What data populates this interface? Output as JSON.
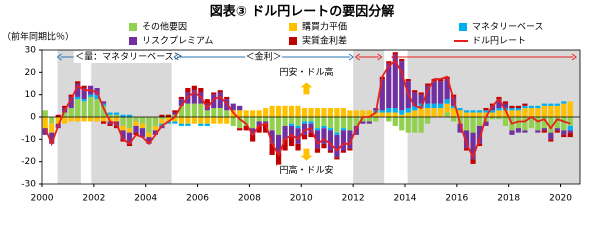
{
  "chart_data": {
    "type": "bar",
    "stacked": true,
    "title": "図表③ ドル円レートの要因分解",
    "y_label": "（前年同期比％）",
    "x": [
      2000.125,
      2000.375,
      2000.625,
      2000.875,
      2001.125,
      2001.375,
      2001.625,
      2001.875,
      2002.125,
      2002.375,
      2002.625,
      2002.875,
      2003.125,
      2003.375,
      2003.625,
      2003.875,
      2004.125,
      2004.375,
      2004.625,
      2004.875,
      2005.125,
      2005.375,
      2005.625,
      2005.875,
      2006.125,
      2006.375,
      2006.625,
      2006.875,
      2007.125,
      2007.375,
      2007.625,
      2007.875,
      2008.125,
      2008.375,
      2008.625,
      2008.875,
      2009.125,
      2009.375,
      2009.625,
      2009.875,
      2010.125,
      2010.375,
      2010.625,
      2010.875,
      2011.125,
      2011.375,
      2011.625,
      2011.875,
      2012.125,
      2012.375,
      2012.625,
      2012.875,
      2013.125,
      2013.375,
      2013.625,
      2013.875,
      2014.125,
      2014.375,
      2014.625,
      2014.875,
      2015.125,
      2015.375,
      2015.625,
      2015.875,
      2016.125,
      2016.375,
      2016.625,
      2016.875,
      2017.125,
      2017.375,
      2017.625,
      2017.875,
      2018.125,
      2018.375,
      2018.625,
      2018.875,
      2019.125,
      2019.375,
      2019.625,
      2019.875,
      2020.125,
      2020.375
    ],
    "series": [
      {
        "name": "その他要因",
        "color": "#92d050",
        "values": [
          3,
          -3,
          0,
          2,
          4,
          8,
          7,
          9,
          8,
          5,
          1,
          1,
          -4,
          -5,
          -2,
          -3,
          -7,
          -4,
          -1,
          0,
          1,
          5,
          6,
          6,
          6,
          3,
          4,
          4,
          3,
          -4,
          -5,
          -4,
          -5,
          -2,
          -2,
          -6,
          -8,
          -4,
          -3,
          -4,
          -2,
          -2,
          -5,
          -4,
          -5,
          -7,
          -5,
          -6,
          -4,
          -2,
          -2,
          -2,
          0,
          -2,
          -4,
          -6,
          -7,
          -7,
          -7,
          -3,
          0,
          0,
          2,
          -2,
          -3,
          -6,
          -7,
          -4,
          -2,
          -1,
          -1,
          -4,
          -6,
          -5,
          -6,
          -5,
          -6,
          -5,
          -7,
          -5,
          -6,
          -4
        ]
      },
      {
        "name": "購買力平価",
        "color": "#ffc000",
        "values": [
          -5,
          -4,
          -3,
          -3,
          -2,
          -2,
          -2,
          -2,
          -2,
          -2,
          -2,
          -2,
          -2,
          -2,
          -2,
          -2,
          -2,
          -2,
          -2,
          -2,
          -2,
          -3,
          -3,
          -3,
          -3,
          -3,
          -3,
          -3,
          -3,
          3,
          3,
          3,
          3,
          3,
          4,
          5,
          5,
          5,
          5,
          5,
          4,
          4,
          4,
          4,
          4,
          4,
          4,
          3,
          3,
          3,
          3,
          2,
          2,
          2,
          2,
          1,
          2,
          3,
          4,
          4,
          4,
          4,
          4,
          4,
          3,
          2,
          2,
          2,
          2,
          2,
          3,
          3,
          3,
          3,
          4,
          4,
          4,
          5,
          5,
          5,
          6,
          7
        ]
      },
      {
        "name": "マネタリーベース",
        "color": "#00b0f0",
        "values": [
          0,
          0,
          0,
          0,
          0,
          1,
          1,
          1,
          2,
          1,
          1,
          1,
          1,
          1,
          0,
          0,
          0,
          0,
          -1,
          -1,
          -1,
          -1,
          -1,
          0,
          -1,
          -1,
          0,
          0,
          0,
          0,
          0,
          0,
          0,
          0,
          0,
          0,
          0,
          0,
          -1,
          -1,
          -1,
          -1,
          -1,
          -1,
          -1,
          -1,
          -1,
          0,
          0,
          0,
          0,
          1,
          1,
          2,
          2,
          2,
          2,
          2,
          2,
          2,
          2,
          2,
          2,
          1,
          1,
          1,
          1,
          1,
          1,
          1,
          1,
          1,
          1,
          1,
          1,
          1,
          1,
          1,
          1,
          1,
          1,
          -2
        ]
      },
      {
        "name": "リスクプレミアム",
        "color": "#7030a0",
        "values": [
          -3,
          -5,
          -2,
          2,
          5,
          6,
          5,
          4,
          3,
          1,
          -1,
          -2,
          -4,
          -5,
          -3,
          -4,
          -3,
          -2,
          -1,
          0,
          1,
          3,
          5,
          6,
          5,
          3,
          6,
          7,
          5,
          3,
          2,
          0,
          -3,
          -2,
          -1,
          -6,
          -8,
          -6,
          -5,
          -7,
          -5,
          -4,
          -8,
          -7,
          -9,
          -10,
          -9,
          -8,
          -4,
          -1,
          -1,
          1,
          14,
          20,
          24,
          22,
          12,
          6,
          4,
          8,
          10,
          10,
          9,
          4,
          -4,
          -8,
          -12,
          -8,
          -2,
          2,
          4,
          2,
          -2,
          -2,
          -1,
          0,
          -1,
          -1,
          -3,
          -1,
          -2,
          -1
        ]
      },
      {
        "name": "実質金利差",
        "color": "#c00000",
        "values": [
          0,
          0,
          1,
          1,
          1,
          1,
          1,
          0,
          0,
          -1,
          -1,
          -1,
          -1,
          -1,
          -1,
          0,
          0,
          0,
          1,
          1,
          1,
          1,
          2,
          2,
          2,
          2,
          1,
          1,
          1,
          0,
          -1,
          -2,
          -3,
          -3,
          -4,
          -5,
          -6,
          -5,
          -4,
          -3,
          -2,
          -2,
          -2,
          -2,
          -1,
          -1,
          -1,
          -1,
          0,
          0,
          0,
          0,
          1,
          1,
          1,
          1,
          1,
          1,
          1,
          1,
          1,
          1,
          1,
          1,
          0,
          -1,
          -2,
          -1,
          1,
          1,
          1,
          1,
          1,
          1,
          1,
          0,
          0,
          -1,
          -1,
          -1,
          -1,
          -2
        ]
      },
      {
        "name": "ドル円レート",
        "type": "line",
        "color": "#e8201c",
        "values": [
          -5,
          -12,
          -4,
          3,
          8,
          14,
          12,
          12,
          11,
          4,
          -2,
          -3,
          -10,
          -12,
          -8,
          -9,
          -12,
          -8,
          -4,
          -2,
          0,
          5,
          9,
          11,
          9,
          4,
          8,
          9,
          6,
          2,
          -1,
          -3,
          -8,
          -4,
          -3,
          -12,
          -17,
          -10,
          -8,
          -10,
          -6,
          -5,
          -12,
          -10,
          -12,
          -15,
          -12,
          -12,
          -5,
          0,
          0,
          2,
          18,
          23,
          25,
          20,
          10,
          5,
          4,
          12,
          17,
          17,
          18,
          8,
          -3,
          -12,
          -18,
          -10,
          0,
          5,
          8,
          3,
          -3,
          -2,
          -2,
          0,
          -2,
          -1,
          -5,
          -1,
          -2,
          -3
        ]
      }
    ],
    "xlim": [
      2000,
      2020.75
    ],
    "xticks": [
      2000,
      2002,
      2004,
      2006,
      2008,
      2010,
      2012,
      2014,
      2016,
      2018,
      2020
    ],
    "ylim": [
      -30,
      30
    ],
    "yticks": [
      -30,
      -20,
      -10,
      0,
      10,
      20,
      30
    ],
    "grid": false,
    "shaded_periods": [
      [
        2000.6,
        2001.5
      ],
      [
        2001.9,
        2005.0
      ],
      [
        2012.0,
        2013.2
      ],
      [
        2014.1,
        2020.75
      ]
    ],
    "periods": [
      {
        "from": 2000.6,
        "to": 2001.5,
        "color": "#2e75b6"
      },
      {
        "from": 2001.7,
        "to": 2005.0,
        "label": "＜量：マネタリーベース＞",
        "color": "#2e75b6"
      },
      {
        "from": 2005.1,
        "to": 2012.0,
        "label": "＜金利＞",
        "color": "#2e75b6"
      },
      {
        "from": 2012.1,
        "to": 2013.1,
        "color": "#e8201c"
      },
      {
        "from": 2013.5,
        "to": 2020.6,
        "color": "#e8201c"
      }
    ],
    "annotations": [
      {
        "text": "円安・ドル高",
        "x": 2010.2,
        "y": 20,
        "arrow": "up"
      },
      {
        "text": "円高・ドル安",
        "x": 2010.2,
        "y": -24,
        "arrow": "down"
      }
    ]
  }
}
